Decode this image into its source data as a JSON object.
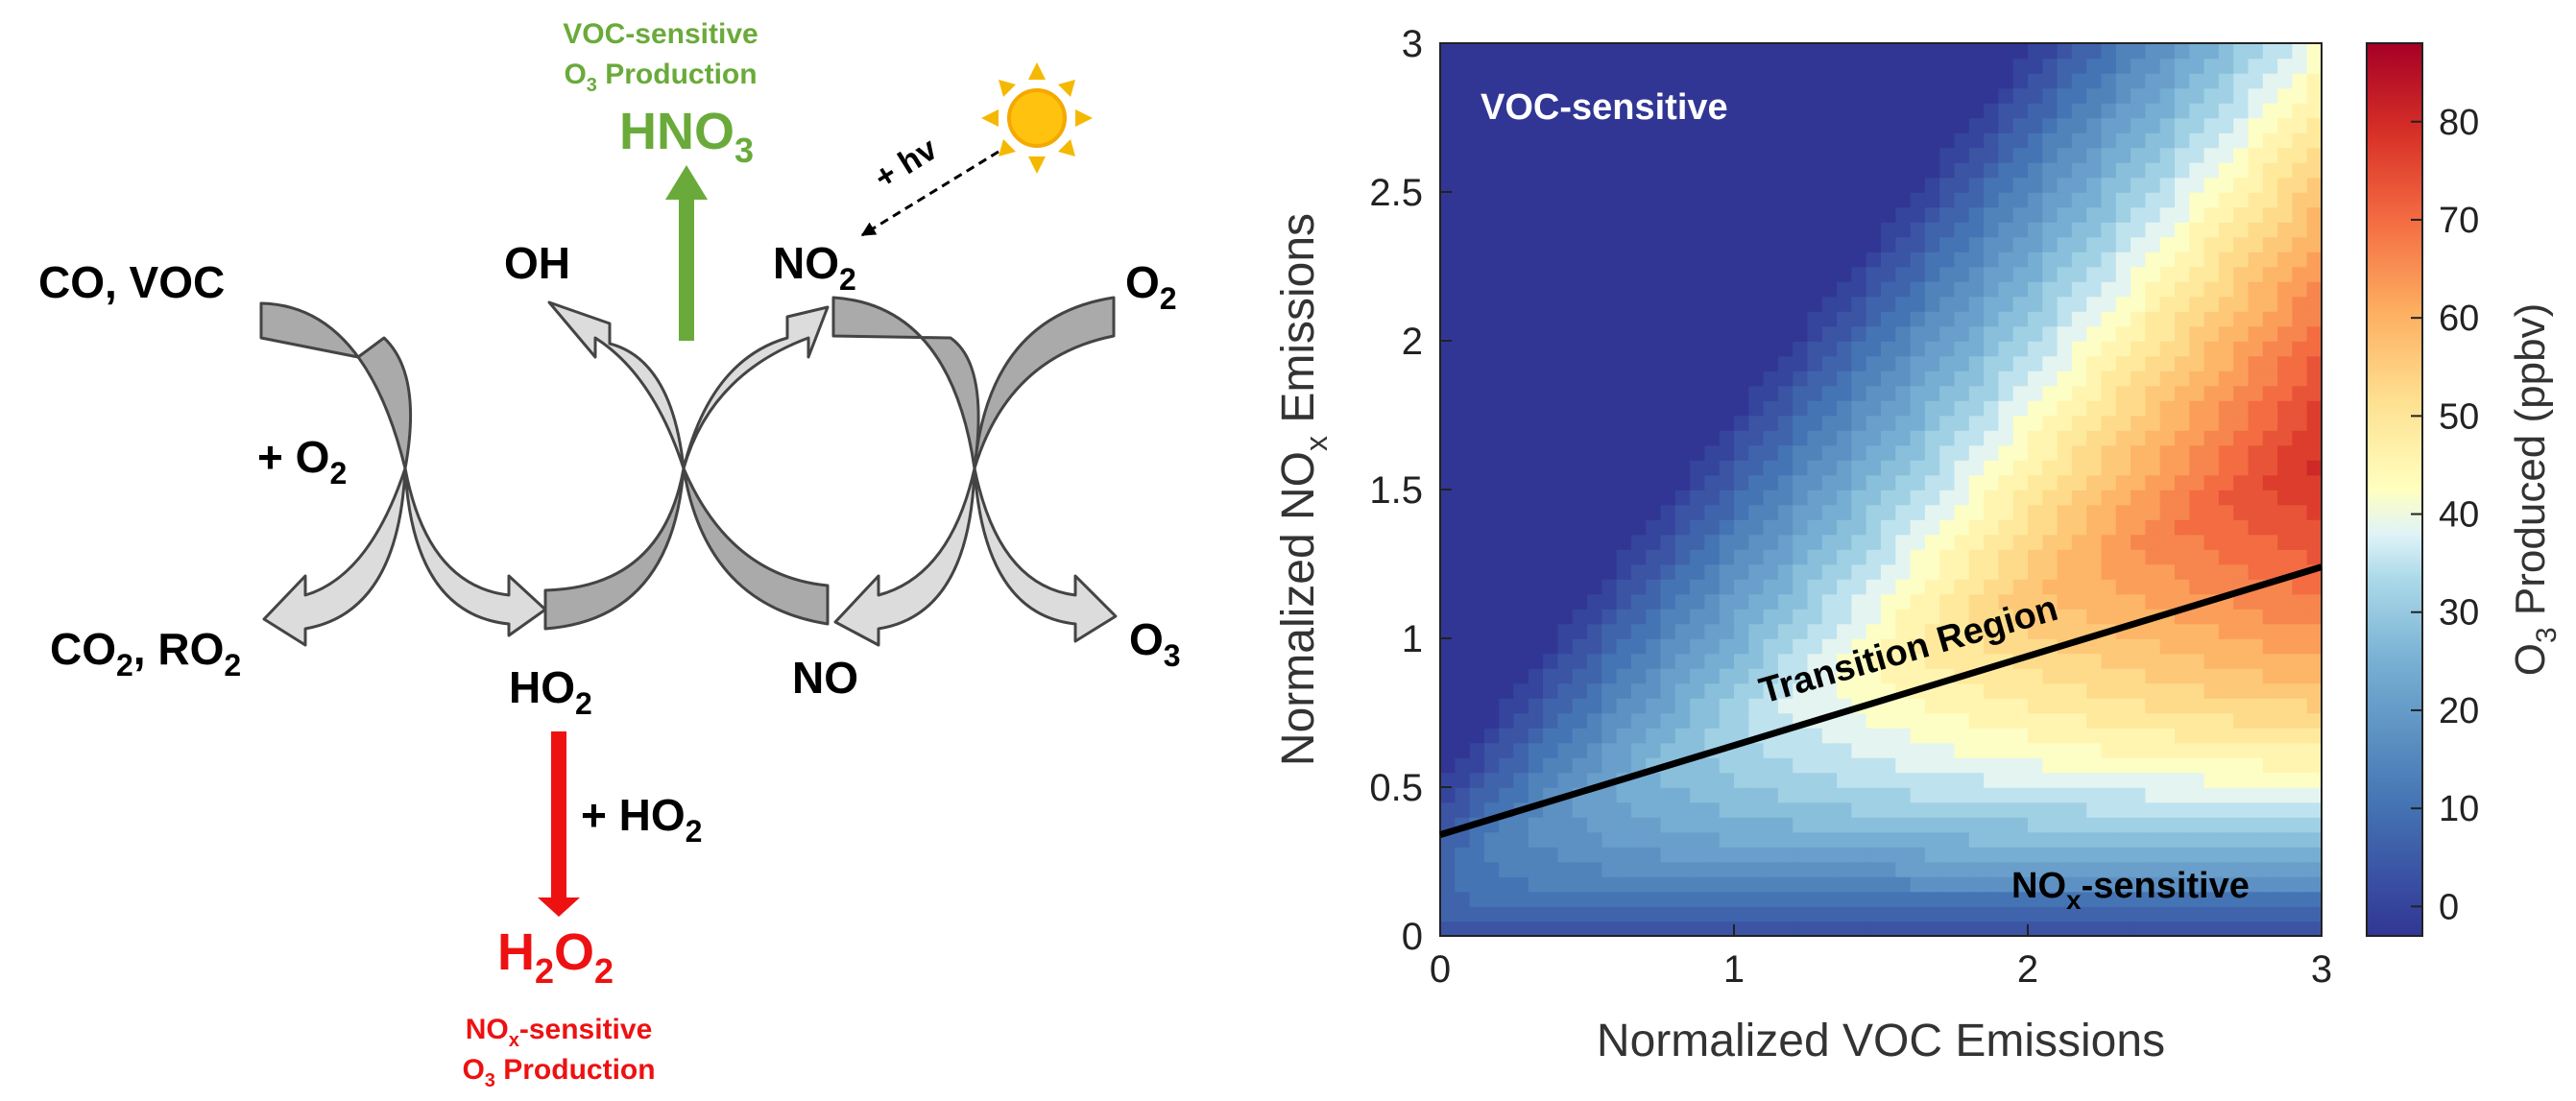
{
  "mechanism": {
    "co_voc": "CO, VOC",
    "oh": "OH",
    "no2_base": "NO",
    "no2_sub": "2",
    "o2_right_base": "O",
    "o2_right_sub": "2",
    "plus_o2_base": "+ O",
    "plus_o2_sub": "2",
    "co2_ro2_a": "CO",
    "co2_ro2_a_sub": "2",
    "co2_ro2_b": ", RO",
    "co2_ro2_b_sub": "2",
    "ho2_base": "HO",
    "ho2_sub": "2",
    "no": "NO",
    "o3_base": "O",
    "o3_sub": "3",
    "hv": "+ hv",
    "voc_top_line1": "VOC-sensitive",
    "voc_top_line2_base": "O",
    "voc_top_line2_sub": "3",
    "voc_top_line2_rest": " Production",
    "hno3_base": "HNO",
    "hno3_sub": "3",
    "plus_ho2_base": "+ HO",
    "plus_ho2_sub": "2",
    "h2o2_a": "H",
    "h2o2_a_sub": "2",
    "h2o2_b": "O",
    "h2o2_b_sub": "2",
    "nox_bottom_line1_base": "NO",
    "nox_bottom_line1_sub": "x",
    "nox_bottom_line1_rest": "-sensitive",
    "nox_bottom_line2_base": "O",
    "nox_bottom_line2_sub": "3",
    "nox_bottom_line2_rest": " Production",
    "colors": {
      "green": "#6aaa3a",
      "red": "#ee1111",
      "arrow_dark": "#aaaaaa",
      "arrow_light": "#dcdcdc",
      "sun": "#f5b800"
    }
  },
  "chart_data": {
    "type": "heatmap",
    "xlabel": "Normalized VOC Emissions",
    "ylabel_base": "Normalized NO",
    "ylabel_sub": "x",
    "ylabel_rest": " Emissions",
    "x_ticks": [
      0,
      1,
      2,
      3
    ],
    "y_ticks": [
      0,
      0.5,
      1,
      1.5,
      2,
      2.5,
      3
    ],
    "xlim": [
      0,
      3
    ],
    "ylim": [
      0,
      3
    ],
    "colorbar": {
      "label_base": "O",
      "label_sub": "3",
      "label_rest": " Produced (ppbv)",
      "ticks": [
        0,
        10,
        20,
        30,
        40,
        50,
        60,
        70,
        80
      ],
      "range": [
        -3,
        88
      ]
    },
    "regions": {
      "voc": "VOC-sensitive",
      "nox_base": "NO",
      "nox_sub": "x",
      "nox_rest": "-sensitive",
      "transition": "Transition Region"
    },
    "transition_line": {
      "x": [
        0,
        3
      ],
      "y": [
        0.34,
        1.24
      ]
    }
  }
}
